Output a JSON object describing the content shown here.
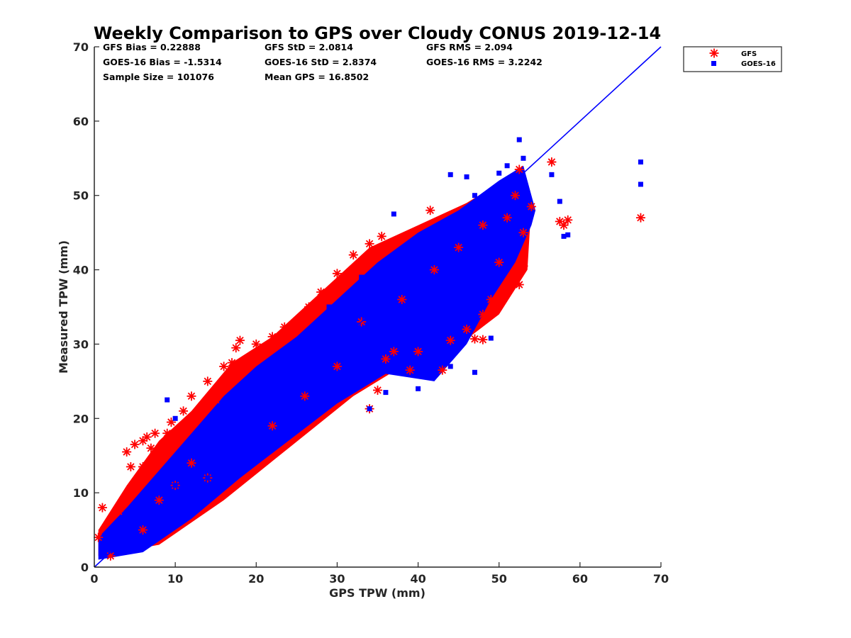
{
  "chart_data": {
    "type": "scatter",
    "title": "Weekly Comparison to GPS over Cloudy CONUS 2019-12-14",
    "xlabel": "GPS TPW (mm)",
    "ylabel": "Measured TPW (mm)",
    "xlim": [
      0,
      70
    ],
    "ylim": [
      0,
      70
    ],
    "xticks": [
      "0",
      "10",
      "20",
      "30",
      "40",
      "50",
      "60",
      "70"
    ],
    "yticks": [
      "0",
      "10",
      "20",
      "30",
      "40",
      "50",
      "60",
      "70"
    ],
    "grid": false,
    "legend_position": "outside-top-right",
    "stats": [
      [
        "GFS Bias = 0.22888",
        "GFS StD = 2.0814",
        "GFS RMS = 2.094"
      ],
      [
        "GOES-16 Bias = -1.5314",
        "GOES-16 StD = 2.8374",
        "GOES-16 RMS = 3.2242"
      ],
      [
        "Sample Size = 101076",
        "Mean GPS = 16.8502",
        ""
      ]
    ],
    "reference_line": {
      "x": [
        0,
        70
      ],
      "y": [
        0,
        70
      ],
      "color": "#0000ff"
    },
    "series": [
      {
        "name": "GFS",
        "marker": "asterisk",
        "color": "#ff0000",
        "sample_points": [
          [
            0.5,
            4
          ],
          [
            1,
            8
          ],
          [
            2,
            1.5
          ],
          [
            3,
            7.5
          ],
          [
            4,
            15.5
          ],
          [
            4.5,
            13.5
          ],
          [
            5,
            16.5
          ],
          [
            6,
            13.5
          ],
          [
            6,
            17
          ],
          [
            6.5,
            17.5
          ],
          [
            7,
            16
          ],
          [
            7.5,
            18
          ],
          [
            9,
            18
          ],
          [
            9.5,
            19.5
          ],
          [
            11,
            21
          ],
          [
            12,
            23
          ],
          [
            14,
            25
          ],
          [
            15,
            22.5
          ],
          [
            16,
            27
          ],
          [
            17,
            27.5
          ],
          [
            18,
            30.5
          ],
          [
            17.5,
            29.5
          ],
          [
            20,
            30
          ],
          [
            22,
            31
          ],
          [
            23.5,
            32.3
          ],
          [
            26.5,
            35
          ],
          [
            28,
            37
          ],
          [
            30,
            39.5
          ],
          [
            32,
            42
          ],
          [
            34,
            43.5
          ],
          [
            35.5,
            44.5
          ],
          [
            35,
            23.8
          ],
          [
            34,
            21.3
          ],
          [
            36,
            28
          ],
          [
            37,
            29
          ],
          [
            39,
            26.5
          ],
          [
            40,
            29
          ],
          [
            41.5,
            48
          ],
          [
            43,
            26.5
          ],
          [
            44,
            30.5
          ],
          [
            46,
            32
          ],
          [
            47,
            30.7
          ],
          [
            48,
            30.6
          ],
          [
            48,
            34
          ],
          [
            49,
            36
          ],
          [
            50,
            41
          ],
          [
            51,
            47
          ],
          [
            52,
            50
          ],
          [
            52.5,
            38
          ],
          [
            52.5,
            53.5
          ],
          [
            53,
            40.5
          ],
          [
            53,
            45
          ],
          [
            54,
            48.5
          ],
          [
            56.5,
            54.5
          ],
          [
            57.5,
            46.5
          ],
          [
            58,
            46
          ],
          [
            58.5,
            46.7
          ],
          [
            67.5,
            47
          ],
          [
            10,
            11
          ],
          [
            14,
            12
          ],
          [
            22,
            19
          ],
          [
            26,
            23
          ],
          [
            30,
            27
          ],
          [
            33,
            33
          ],
          [
            38,
            36
          ],
          [
            42,
            40
          ],
          [
            45,
            43
          ],
          [
            48,
            46
          ],
          [
            12,
            14
          ],
          [
            8,
            9
          ],
          [
            6,
            5
          ]
        ]
      },
      {
        "name": "GOES-16",
        "marker": "square",
        "color": "#0000ff",
        "sample_points": [
          [
            1,
            2
          ],
          [
            3,
            4
          ],
          [
            5,
            7
          ],
          [
            7,
            6
          ],
          [
            9,
            22.5
          ],
          [
            10,
            20
          ],
          [
            10,
            11
          ],
          [
            13,
            15
          ],
          [
            14,
            12
          ],
          [
            16,
            16
          ],
          [
            18,
            20
          ],
          [
            20,
            18
          ],
          [
            22,
            25
          ],
          [
            24,
            22
          ],
          [
            26,
            28
          ],
          [
            28,
            26
          ],
          [
            29,
            35
          ],
          [
            30,
            32
          ],
          [
            32,
            30
          ],
          [
            33,
            39
          ],
          [
            35,
            37
          ],
          [
            37,
            34
          ],
          [
            37,
            47.5
          ],
          [
            39,
            40
          ],
          [
            40,
            24
          ],
          [
            41,
            42
          ],
          [
            43,
            40
          ],
          [
            44,
            52.8
          ],
          [
            45,
            44
          ],
          [
            46,
            52.5
          ],
          [
            47,
            50
          ],
          [
            48,
            48.5
          ],
          [
            49,
            30.8
          ],
          [
            50,
            53
          ],
          [
            51,
            54
          ],
          [
            52.5,
            57.5
          ],
          [
            53,
            55
          ],
          [
            51,
            42
          ],
          [
            46,
            35
          ],
          [
            47,
            26.2
          ],
          [
            44,
            27
          ],
          [
            42,
            28
          ],
          [
            36,
            23.5
          ],
          [
            34,
            21.3
          ],
          [
            57.5,
            49.2
          ],
          [
            56.5,
            52.8
          ],
          [
            58,
            44.5
          ],
          [
            58.5,
            44.7
          ],
          [
            67.5,
            54.5
          ],
          [
            67.5,
            51.5
          ],
          [
            4,
            3
          ],
          [
            6,
            8
          ],
          [
            8,
            10
          ],
          [
            12,
            10
          ],
          [
            15,
            19
          ],
          [
            19,
            15
          ],
          [
            21,
            21
          ],
          [
            25,
            25
          ],
          [
            27,
            31
          ],
          [
            31,
            28
          ],
          [
            34,
            36
          ],
          [
            38,
            38
          ],
          [
            42,
            45
          ],
          [
            49,
            47
          ]
        ]
      }
    ]
  }
}
